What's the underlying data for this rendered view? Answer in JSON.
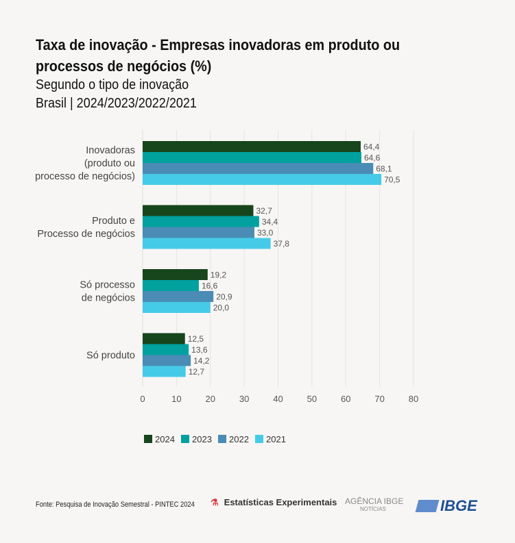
{
  "title": "Taxa de inovação - Empresas inovadoras em produto ou processos de negócios (%)",
  "subtitle": "Segundo o tipo de inovação",
  "subtitle2": "Brasil | 2024/2023/2022/2021",
  "colors": {
    "2024": "#17451c",
    "2023": "#00a19f",
    "2022": "#4a8cb5",
    "2021": "#45cbe8",
    "background": "#f7f6f4"
  },
  "chart_data": {
    "type": "bar",
    "orientation": "horizontal",
    "categories": [
      [
        "Inovadoras",
        "(produto ou",
        "processo de negócios)"
      ],
      [
        "Produto e",
        "Processo de negócios"
      ],
      [
        "Só processo",
        "de negócios"
      ],
      [
        "Só produto"
      ]
    ],
    "series": [
      {
        "name": "2024",
        "values": [
          64.4,
          32.7,
          19.2,
          12.5
        ],
        "labels": [
          "64,4",
          "32,7",
          "19,2",
          "12,5"
        ]
      },
      {
        "name": "2023",
        "values": [
          64.6,
          34.4,
          16.6,
          13.6
        ],
        "labels": [
          "64,6",
          "34,4",
          "16,6",
          "13,6"
        ]
      },
      {
        "name": "2022",
        "values": [
          68.1,
          33.0,
          20.9,
          14.2
        ],
        "labels": [
          "68,1",
          "33,0",
          "20,9",
          "14,2"
        ]
      },
      {
        "name": "2021",
        "values": [
          70.5,
          37.8,
          20.0,
          12.7
        ],
        "labels": [
          "70,5",
          "37,8",
          "20,0",
          "12,7"
        ]
      }
    ],
    "xlim": [
      0,
      80
    ],
    "xticks": [
      0,
      10,
      20,
      30,
      40,
      50,
      60,
      70,
      80
    ],
    "grid": true,
    "legend_position": "bottom"
  },
  "footer": {
    "source": "Fonte: Pesquisa de Inovação Semestral - PINTEC 2024",
    "logo1": "Estatísticas Experimentais",
    "logo2": "AGÊNCIA IBGE",
    "logo2_sub": "NOTÍCIAS",
    "logo3": "IBGE"
  }
}
